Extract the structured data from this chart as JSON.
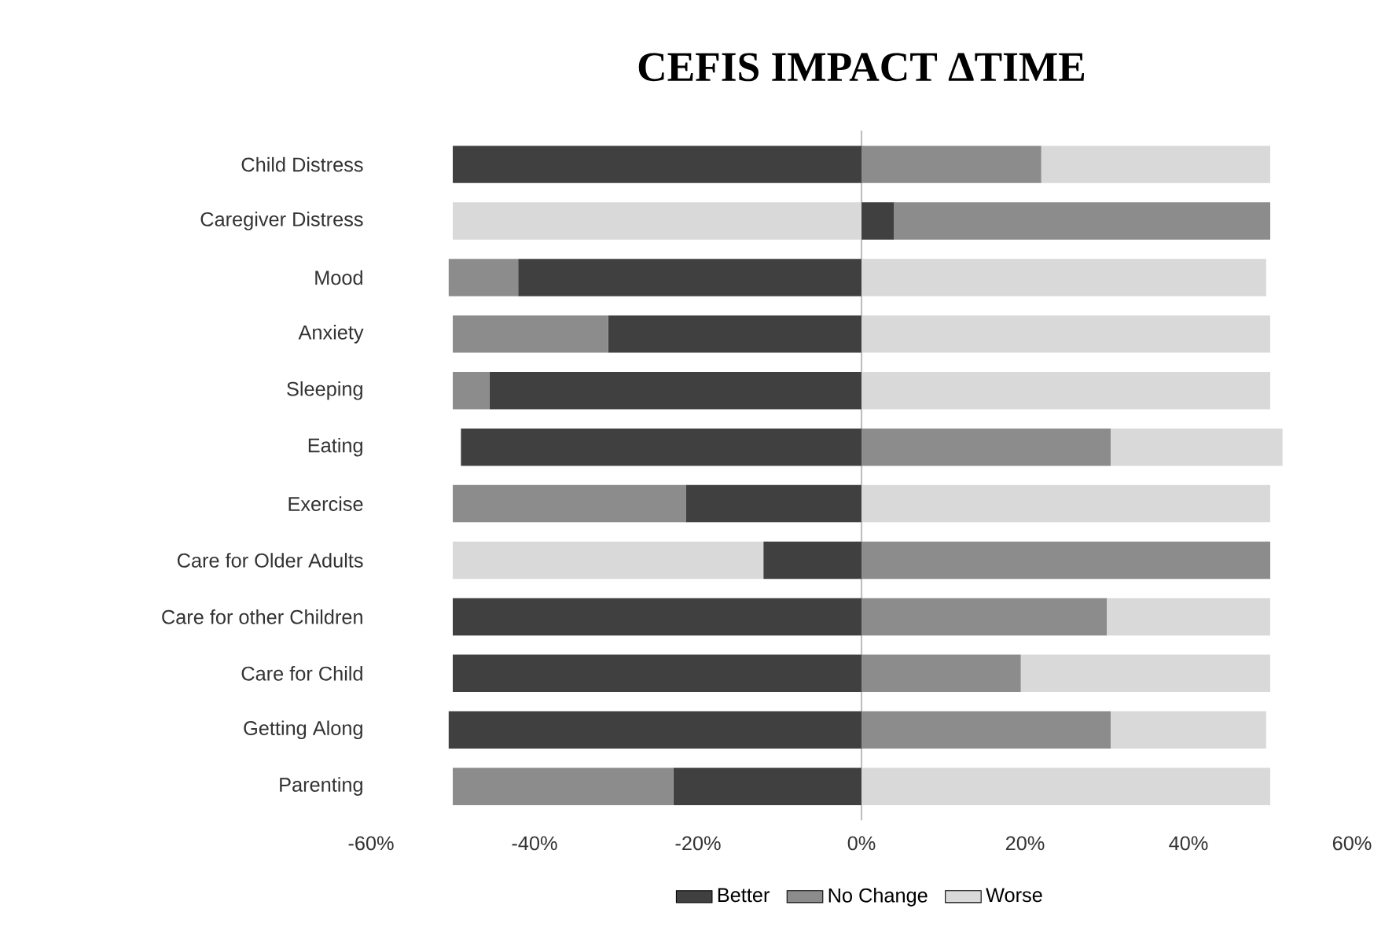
{
  "chart_data": {
    "type": "bar",
    "title": "CEFIS IMPACT ΔTIME",
    "orientation": "horizontal",
    "stacked": true,
    "categories": [
      "Child Distress",
      "Caregiver Distress",
      "Mood",
      "Anxiety",
      "Sleeping",
      "Eating",
      "Exercise",
      "Care for Older Adults",
      "Care for other Children",
      "Care for Child",
      "Getting Along",
      "Parenting"
    ],
    "series": [
      {
        "name": "Better",
        "color": "#404040",
        "values": [
          -50,
          4,
          -42,
          -31,
          -45.5,
          -49,
          -21.5,
          -12,
          -50,
          -50,
          -50.5,
          -23
        ]
      },
      {
        "name": "No Change",
        "color": "#8c8c8c",
        "values": [
          22,
          46,
          -8.5,
          -19,
          -4.5,
          30.5,
          -28.5,
          50,
          30,
          19.5,
          30.5,
          -27
        ]
      },
      {
        "name": "Worse",
        "color": "#d9d9d9",
        "values": [
          28,
          -50,
          49.5,
          50,
          50,
          21,
          50,
          -38,
          20,
          30.5,
          19,
          50
        ]
      }
    ],
    "xlim": [
      -60,
      60
    ],
    "xticks": [
      {
        "value": -60,
        "label": "-60%"
      },
      {
        "value": -40,
        "label": "-40%"
      },
      {
        "value": -20,
        "label": "-20%"
      },
      {
        "value": 0,
        "label": "0%"
      },
      {
        "value": 20,
        "label": "20%"
      },
      {
        "value": 40,
        "label": "40%"
      },
      {
        "value": 60,
        "label": "60%"
      }
    ],
    "legend": "bottom"
  }
}
